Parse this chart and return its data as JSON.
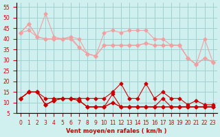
{
  "xlabel": "Vent moyen/en rafales ( km/h )",
  "bg_color": "#d0f0f0",
  "grid_color": "#a0d0d0",
  "x_ticks": [
    0,
    1,
    2,
    3,
    4,
    5,
    6,
    7,
    8,
    9,
    10,
    11,
    12,
    13,
    14,
    15,
    16,
    17,
    18,
    19,
    20,
    21,
    22,
    23
  ],
  "ylim": [
    5,
    57
  ],
  "yticks": [
    5,
    10,
    15,
    20,
    25,
    30,
    35,
    40,
    45,
    50,
    55
  ],
  "series_light": [
    [
      43,
      47,
      41,
      52,
      41,
      40,
      41,
      40,
      33,
      32,
      43,
      44,
      43,
      44,
      44,
      44,
      40,
      40,
      37,
      37,
      31,
      28,
      40,
      29
    ],
    [
      43,
      47,
      41,
      40,
      40,
      40,
      40,
      36,
      33,
      32,
      37,
      37,
      37,
      37,
      37,
      38,
      37,
      37,
      37,
      37,
      31,
      28,
      31,
      29
    ],
    [
      43,
      44,
      41,
      40,
      40,
      40,
      41,
      36,
      33,
      32,
      37,
      37,
      37,
      37,
      37,
      38,
      37,
      37,
      37,
      37,
      31,
      28,
      31,
      29
    ]
  ],
  "series_dark": [
    [
      12,
      15,
      15,
      12,
      12,
      12,
      12,
      12,
      12,
      12,
      12,
      15,
      19,
      12,
      12,
      19,
      12,
      15,
      12,
      12,
      9,
      11,
      9,
      9
    ],
    [
      12,
      15,
      15,
      9,
      11,
      12,
      12,
      11,
      8,
      8,
      8,
      14,
      8,
      8,
      8,
      8,
      8,
      12,
      8,
      8,
      8,
      8,
      8,
      8
    ],
    [
      12,
      15,
      15,
      9,
      11,
      12,
      12,
      11,
      8,
      8,
      8,
      10,
      8,
      8,
      8,
      8,
      8,
      8,
      8,
      8,
      8,
      8,
      8,
      8
    ],
    [
      12,
      15,
      15,
      9,
      11,
      12,
      12,
      11,
      8,
      8,
      8,
      10,
      8,
      8,
      8,
      8,
      8,
      8,
      8,
      8,
      8,
      8,
      8,
      8
    ]
  ],
  "color_light": "#f0a0a0",
  "color_dark": "#cc0000",
  "marker": "D",
  "markersize": 2.5
}
